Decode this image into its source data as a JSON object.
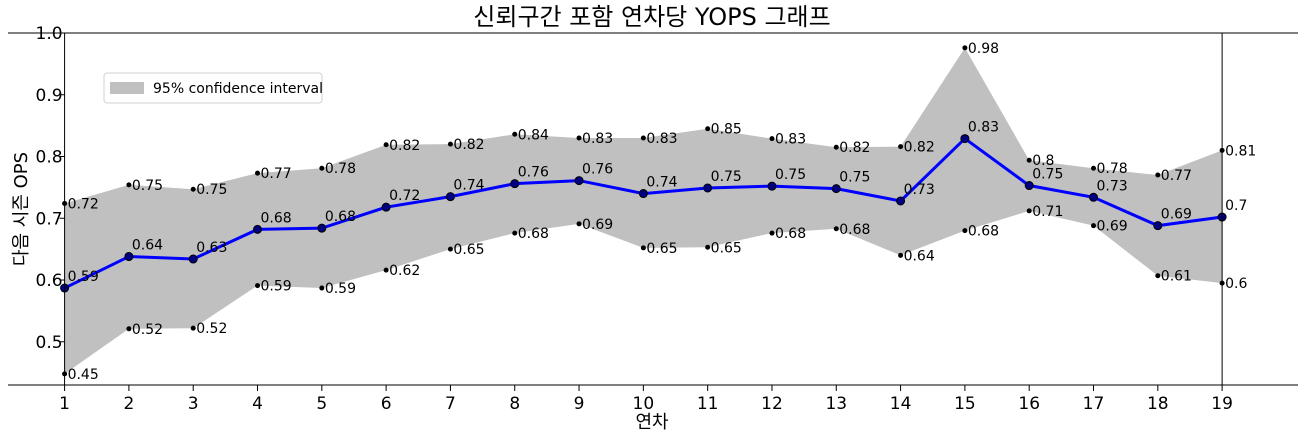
{
  "chart_data": {
    "type": "line",
    "title": "신뢰구간 포함 연차당 YOPS 그래프",
    "xlabel": "연차",
    "ylabel": "다음 시즌 OPS",
    "x": [
      1,
      2,
      3,
      4,
      5,
      6,
      7,
      8,
      9,
      10,
      11,
      12,
      13,
      14,
      15,
      16,
      17,
      18,
      19
    ],
    "xlim": [
      0.12,
      20.18
    ],
    "ylim": [
      0.43,
      1.0
    ],
    "yticks": [
      "0.5",
      "0.6",
      "0.7",
      "0.8",
      "0.9",
      "1.0"
    ],
    "yticks_values": [
      0.5,
      0.6,
      0.7,
      0.8,
      0.9,
      1.0
    ],
    "series": [
      {
        "name": "",
        "color": "#0000ff",
        "values": [
          0.587,
          0.638,
          0.634,
          0.682,
          0.684,
          0.718,
          0.735,
          0.756,
          0.761,
          0.74,
          0.749,
          0.752,
          0.748,
          0.728,
          0.829,
          0.753,
          0.734,
          0.688,
          0.702
        ],
        "labels": [
          "0.59",
          "0.64",
          "0.63",
          "0.68",
          "0.68",
          "0.72",
          "0.74",
          "0.76",
          "0.76",
          "0.74",
          "0.75",
          "0.75",
          "0.75",
          "0.73",
          "0.83",
          "0.75",
          "0.73",
          "0.69",
          "0.7"
        ]
      }
    ],
    "confidence_interval": {
      "name": "95% confidence interval",
      "color": "#c0c0c0",
      "upper": [
        0.724,
        0.754,
        0.747,
        0.773,
        0.781,
        0.819,
        0.82,
        0.836,
        0.83,
        0.83,
        0.845,
        0.829,
        0.815,
        0.816,
        0.976,
        0.794,
        0.781,
        0.77,
        0.81
      ],
      "upper_labels": [
        "0.72",
        "0.75",
        "0.75",
        "0.77",
        "0.78",
        "0.82",
        "0.82",
        "0.84",
        "0.83",
        "0.83",
        "0.85",
        "0.83",
        "0.82",
        "0.82",
        "0.98",
        "0.8",
        "0.78",
        "0.77",
        "0.81"
      ],
      "lower": [
        0.448,
        0.521,
        0.522,
        0.591,
        0.587,
        0.616,
        0.65,
        0.676,
        0.691,
        0.652,
        0.653,
        0.676,
        0.683,
        0.64,
        0.68,
        0.712,
        0.688,
        0.607,
        0.595
      ],
      "lower_labels": [
        "0.45",
        "0.52",
        "0.52",
        "0.59",
        "0.59",
        "0.62",
        "0.65",
        "0.68",
        "0.69",
        "0.65",
        "0.65",
        "0.68",
        "0.68",
        "0.64",
        "0.68",
        "0.71",
        "0.69",
        "0.61",
        "0.6"
      ]
    },
    "legend_position": "upper-left",
    "grid": false
  }
}
